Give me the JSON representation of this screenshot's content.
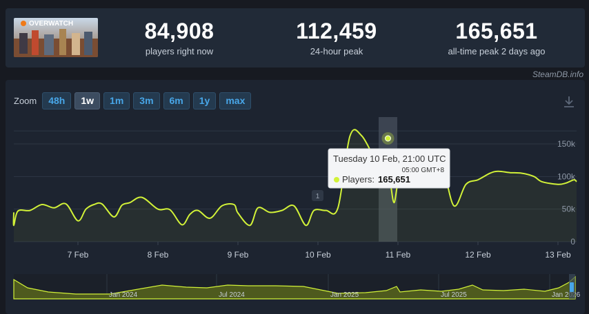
{
  "game": {
    "logo_text": "OVERWATCH",
    "thumbnail_icon": "game-artwork-thumbnail"
  },
  "stats": [
    {
      "value": "84,908",
      "label": "players right now"
    },
    {
      "value": "112,459",
      "label": "24-hour peak"
    },
    {
      "value": "165,651",
      "label": "all-time peak 2 days ago"
    }
  ],
  "credit": "SteamDB.info",
  "zoom": {
    "label": "Zoom",
    "options": [
      "48h",
      "1w",
      "1m",
      "3m",
      "6m",
      "1y",
      "max"
    ],
    "active": "1w"
  },
  "tooltip": {
    "date": "Tuesday 10 Feb, 21:00 UTC",
    "local": "05:00 GMT+8",
    "series_label": "Players:",
    "value": "165,651"
  },
  "annotation_marker": "1",
  "colors": {
    "line": "#d2f238",
    "navigator_fill": "#4e5a1e",
    "accent_button": "#48a6e8",
    "background": "#171a21"
  },
  "chart_data": [
    {
      "type": "line",
      "title": "",
      "series": [
        {
          "name": "Players",
          "x": [
            6.0,
            6.1,
            6.25,
            6.4,
            6.55,
            6.7,
            6.85,
            7.0,
            7.1,
            7.2,
            7.3,
            7.45,
            7.55,
            7.65,
            7.8,
            8.0,
            8.15,
            8.3,
            8.4,
            8.5,
            8.65,
            8.8,
            8.95,
            9.0,
            9.15,
            9.25,
            9.4,
            9.55,
            9.7,
            9.85,
            9.95,
            10.1,
            10.25,
            10.4,
            10.55,
            10.75,
            10.8,
            10.84,
            10.9,
            10.95,
            11.0,
            11.08,
            11.25,
            11.4,
            11.55,
            11.7,
            11.85,
            12.0,
            12.15,
            12.25,
            12.4,
            12.55,
            12.7,
            12.8,
            13.0,
            13.1,
            13.2,
            13.3
          ],
          "values": [
            45000,
            25000,
            47000,
            48000,
            57000,
            52000,
            58000,
            32000,
            50000,
            57000,
            58000,
            38000,
            56000,
            60000,
            68000,
            50000,
            49000,
            26000,
            42000,
            48000,
            36000,
            55000,
            57000,
            44000,
            25000,
            52000,
            45000,
            48000,
            55000,
            25000,
            48000,
            48000,
            52000,
            162000,
            162000,
            120000,
            140000,
            130000,
            95000,
            60000,
            90000,
            110000,
            118000,
            105000,
            116000,
            55000,
            88000,
            95000,
            105000,
            108000,
            106000,
            105000,
            100000,
            92000,
            88000,
            90000,
            95000,
            92000
          ]
        }
      ],
      "x_tick_labels": [
        "7 Feb",
        "8 Feb",
        "9 Feb",
        "10 Feb",
        "11 Feb",
        "12 Feb",
        "13 Feb"
      ],
      "y_tick_labels": [
        "150k",
        "100k",
        "50k",
        "0"
      ],
      "ylim": [
        0,
        170000
      ],
      "highlighted_point": {
        "x": "Tuesday 10 Feb, 21:00 UTC",
        "value": 165651
      },
      "grid": true,
      "legend": "none"
    },
    {
      "type": "area",
      "title": "",
      "x_tick_labels": [
        "Jan 2024",
        "Jul 2024",
        "Jan 2025",
        "Jul 2025",
        "Jan 2026"
      ]
    }
  ]
}
